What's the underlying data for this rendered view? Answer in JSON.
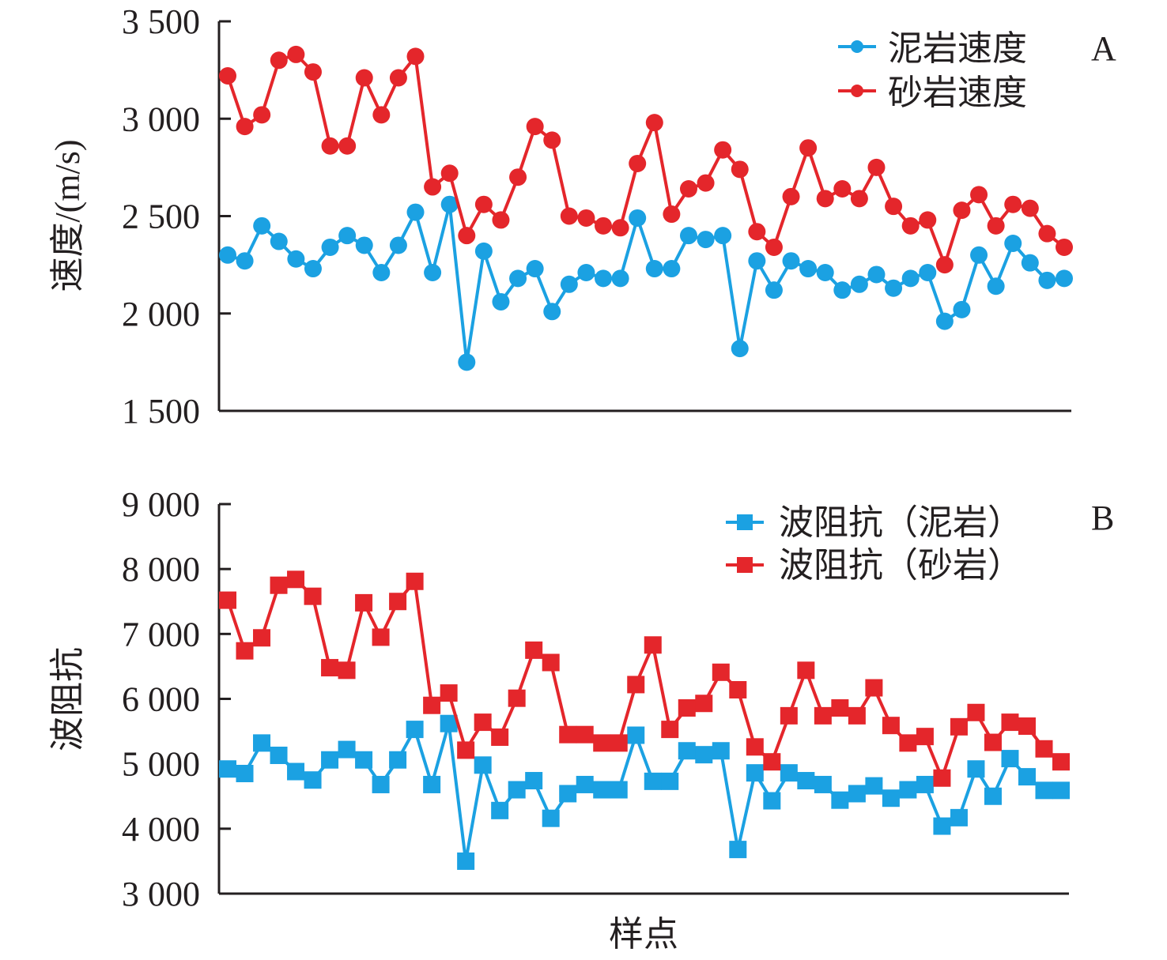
{
  "chart_data": [
    {
      "type": "line",
      "panel_label": "A",
      "xlabel": "",
      "ylabel": "速度/(m/s)",
      "ylim": [
        1500,
        3500
      ],
      "yticks": [
        "1 500",
        "2 000",
        "2 500",
        "3 000",
        "3 500"
      ],
      "yticks_values": [
        1500,
        2000,
        2500,
        3000,
        3500
      ],
      "legend_position": "top-right",
      "grid": false,
      "marker": "circle",
      "series": [
        {
          "name": "泥岩速度",
          "color": "#1ba1e2",
          "values": [
            2300,
            2270,
            2450,
            2370,
            2280,
            2230,
            2340,
            2400,
            2350,
            2210,
            2350,
            2520,
            2210,
            2560,
            1750,
            2320,
            2060,
            2180,
            2230,
            2010,
            2150,
            2210,
            2180,
            2180,
            2490,
            2230,
            2230,
            2400,
            2380,
            2400,
            1820,
            2270,
            2120,
            2270,
            2230,
            2210,
            2120,
            2150,
            2200,
            2130,
            2180,
            2210,
            1960,
            2020,
            2300,
            2140,
            2360,
            2260,
            2170,
            2180
          ]
        },
        {
          "name": "砂岩速度",
          "color": "#e4262b",
          "values": [
            3220,
            2960,
            3020,
            3300,
            3330,
            3240,
            2860,
            2860,
            3210,
            3020,
            3210,
            3320,
            2650,
            2720,
            2400,
            2560,
            2480,
            2700,
            2960,
            2890,
            2500,
            2490,
            2450,
            2440,
            2770,
            2980,
            2510,
            2640,
            2670,
            2840,
            2740,
            2420,
            2340,
            2600,
            2850,
            2590,
            2640,
            2590,
            2750,
            2550,
            2450,
            2480,
            2250,
            2530,
            2610,
            2450,
            2560,
            2540,
            2410,
            2340
          ]
        }
      ]
    },
    {
      "type": "line",
      "panel_label": "B",
      "xlabel": "样点",
      "ylabel": "波阻抗",
      "ylim": [
        3000,
        9000
      ],
      "yticks": [
        "3 000",
        "4 000",
        "5 000",
        "6 000",
        "7 000",
        "8 000",
        "9 000"
      ],
      "yticks_values": [
        3000,
        4000,
        5000,
        6000,
        7000,
        8000,
        9000
      ],
      "legend_position": "top-right",
      "grid": false,
      "marker": "square",
      "series": [
        {
          "name": "波阻抗（泥岩）",
          "color": "#1ba1e2",
          "values": [
            4920,
            4850,
            5320,
            5130,
            4880,
            4750,
            5060,
            5220,
            5060,
            4680,
            5060,
            5530,
            4680,
            5620,
            3500,
            4980,
            4280,
            4600,
            4740,
            4160,
            4540,
            4680,
            4600,
            4600,
            5440,
            4730,
            4730,
            5200,
            5140,
            5200,
            3680,
            4860,
            4430,
            4860,
            4740,
            4680,
            4440,
            4540,
            4660,
            4470,
            4600,
            4680,
            4040,
            4170,
            4920,
            4500,
            5080,
            4800,
            4590,
            4590
          ]
        },
        {
          "name": "波阻抗（砂岩）",
          "color": "#e4262b",
          "values": [
            7520,
            6740,
            6940,
            7750,
            7840,
            7580,
            6480,
            6440,
            7480,
            6950,
            7500,
            7810,
            5900,
            6090,
            5210,
            5640,
            5410,
            6010,
            6750,
            6560,
            5450,
            5450,
            5320,
            5320,
            6220,
            6830,
            5530,
            5860,
            5930,
            6410,
            6140,
            5260,
            5030,
            5740,
            6440,
            5740,
            5860,
            5740,
            6170,
            5590,
            5320,
            5420,
            4780,
            5570,
            5790,
            5330,
            5640,
            5580,
            5230,
            5030
          ]
        }
      ]
    }
  ]
}
